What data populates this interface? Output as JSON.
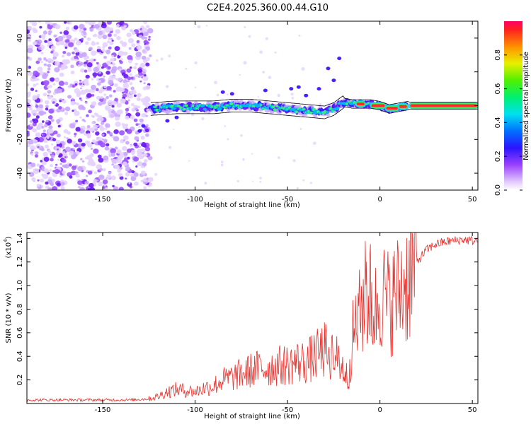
{
  "title": "C2E4.2025.360.00.44.G10",
  "colors": {
    "axis": "#000000",
    "snr_line": "#e8302c",
    "background": "#ffffff"
  },
  "chart_data": [
    {
      "type": "heatmap",
      "xlabel": "Height of straight line (km)",
      "ylabel": "Frequency (Hz)",
      "xlim": [
        -191,
        53
      ],
      "ylim": [
        -50,
        50
      ],
      "xticks": [
        -150,
        -100,
        -50,
        0,
        50
      ],
      "yticks": [
        -40,
        -20,
        0,
        20,
        40
      ],
      "description_series": [
        {
          "name": "noise region",
          "x_range": [
            -191,
            -124
          ],
          "freq_range": [
            -50,
            50
          ]
        },
        {
          "name": "signal band",
          "x_range": [
            -124,
            53
          ],
          "center_freq_approx": 0
        }
      ],
      "band_center": {
        "x": [
          -124,
          -110,
          -100,
          -90,
          -80,
          -70,
          -60,
          -50,
          -40,
          -30,
          -25,
          -20,
          -15,
          -10,
          -5,
          0,
          5,
          10,
          15,
          53
        ],
        "freq": [
          -2,
          -1,
          -1,
          -1,
          0,
          0,
          -1,
          -2,
          -3,
          -4,
          -2,
          2,
          1,
          1,
          1,
          0,
          -2,
          -1,
          0,
          0
        ]
      },
      "colorbar": {
        "label": "Normalized spectral amplitude",
        "range": [
          0,
          1
        ],
        "ticks": [
          "0.0",
          "0.2",
          "0.4",
          "0.6",
          "0.8"
        ],
        "tick_values": [
          0,
          0.2,
          0.4,
          0.6,
          0.8
        ]
      }
    },
    {
      "type": "line",
      "xlabel": "Height of straight line (km)",
      "ylabel": "SNR (10 * v/v)",
      "y_multiplier_label": "(x10",
      "y_multiplier_exp": "4",
      "y_multiplier_close": ")",
      "xlim": [
        -191,
        53
      ],
      "ylim": [
        0,
        1.45
      ],
      "xticks": [
        -150,
        -100,
        -50,
        0,
        50
      ],
      "yticks": [
        "0.2",
        "0.4",
        "0.6",
        "0.8",
        "1.0",
        "1.2",
        "1.4"
      ],
      "ytick_values": [
        0.2,
        0.4,
        0.6,
        0.8,
        1.0,
        1.2,
        1.4
      ],
      "series": [
        {
          "name": "SNR",
          "x": [
            -191,
            -170,
            -150,
            -135,
            -125,
            -120,
            -115,
            -110,
            -105,
            -100,
            -95,
            -90,
            -85,
            -80,
            -75,
            -70,
            -65,
            -60,
            -55,
            -50,
            -45,
            -40,
            -35,
            -30,
            -25,
            -20,
            -17,
            -15,
            -12,
            -10,
            -7,
            -5,
            -3,
            0,
            5,
            10,
            15,
            20,
            25,
            30,
            35,
            40,
            45,
            50,
            53
          ],
          "values": [
            0.03,
            0.03,
            0.03,
            0.03,
            0.04,
            0.06,
            0.1,
            0.12,
            0.11,
            0.1,
            0.13,
            0.15,
            0.2,
            0.22,
            0.25,
            0.28,
            0.3,
            0.3,
            0.32,
            0.33,
            0.35,
            0.35,
            0.4,
            0.45,
            0.42,
            0.3,
            0.2,
            0.55,
            0.7,
            0.8,
            0.95,
            0.9,
            0.75,
            0.95,
            0.85,
            0.95,
            1.05,
            1.2,
            1.3,
            1.35,
            1.37,
            1.38,
            1.39,
            1.38,
            1.38
          ]
        }
      ]
    }
  ]
}
